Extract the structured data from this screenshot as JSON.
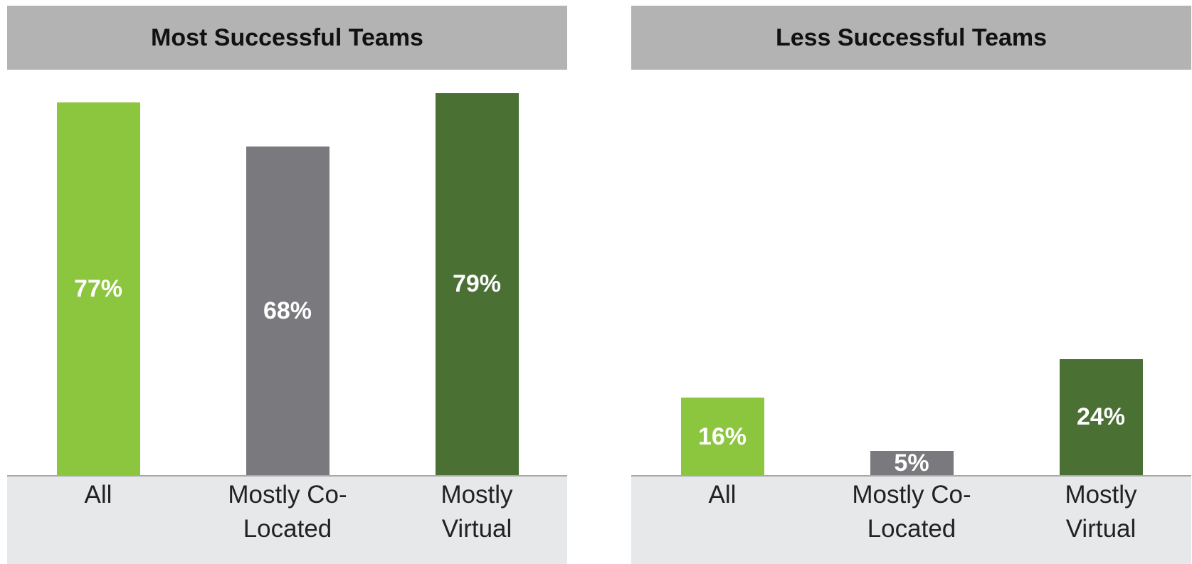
{
  "chart_data": [
    {
      "type": "bar",
      "title": "Most Successful Teams",
      "categories": [
        "All",
        "Mostly Co-Located",
        "Mostly Virtual"
      ],
      "values": [
        77,
        68,
        79
      ],
      "value_labels": [
        "77%",
        "68%",
        "79%"
      ],
      "colors": [
        "#8cc63f",
        "#7a797e",
        "#4a7034"
      ],
      "ylim": [
        0,
        80
      ]
    },
    {
      "type": "bar",
      "title": "Less Successful Teams",
      "categories": [
        "All",
        "Mostly Co-Located",
        "Mostly Virtual"
      ],
      "values": [
        16,
        5,
        24
      ],
      "value_labels": [
        "16%",
        "5%",
        "24%"
      ],
      "colors": [
        "#8cc63f",
        "#7a797e",
        "#4a7034"
      ],
      "ylim": [
        0,
        80
      ]
    }
  ]
}
